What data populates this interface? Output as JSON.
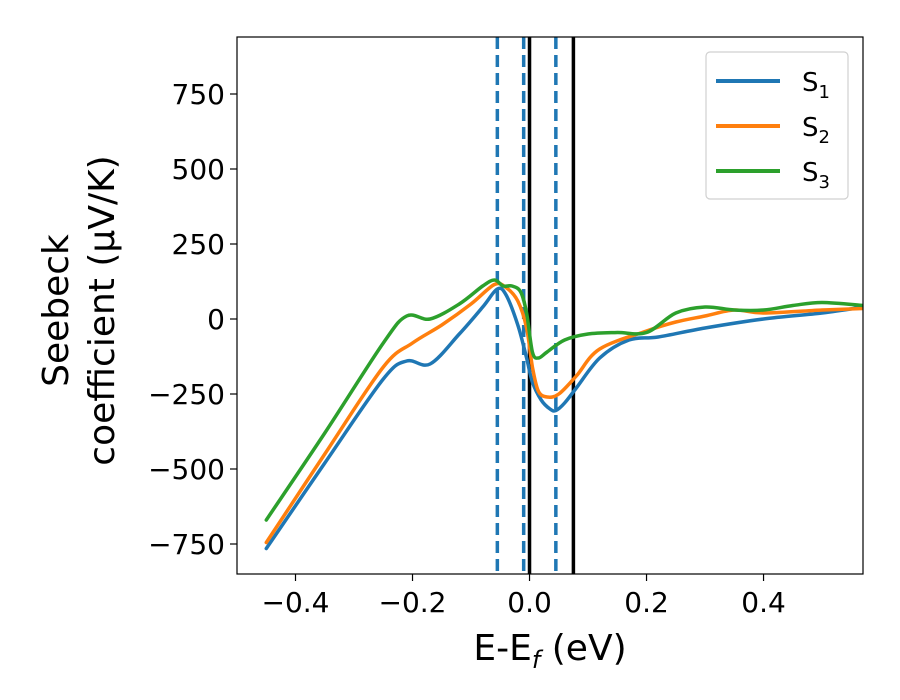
{
  "chart_data": {
    "type": "line",
    "xlabel": {
      "main": "E-E",
      "sub": "f",
      "suffix": " (eV)"
    },
    "ylabel": {
      "line1": "Seebeck",
      "line2": "coefficient  (μV/K)"
    },
    "xlim": [
      -0.5,
      0.57
    ],
    "ylim": [
      -850,
      940
    ],
    "xticks": [
      -0.4,
      -0.2,
      0.0,
      0.2,
      0.4
    ],
    "xtick_labels": [
      "−0.4",
      "−0.2",
      "0.0",
      "0.2",
      "0.4"
    ],
    "yticks": [
      -750,
      -500,
      -250,
      0,
      250,
      500,
      750
    ],
    "ytick_labels": [
      "−750",
      "−500",
      "−250",
      "0",
      "250",
      "500",
      "750"
    ],
    "grid": false,
    "legend_position": "top-right",
    "series": [
      {
        "name": "S",
        "sub": "1",
        "color": "#1f77b4",
        "x": [
          -0.45,
          -0.35,
          -0.25,
          -0.21,
          -0.17,
          -0.12,
          -0.08,
          -0.055,
          -0.04,
          -0.02,
          -0.005,
          0.005,
          0.02,
          0.035,
          0.045,
          0.06,
          0.08,
          0.12,
          0.17,
          0.22,
          0.3,
          0.4,
          0.5,
          0.57
        ],
        "y": [
          -765,
          -480,
          -200,
          -140,
          -150,
          -50,
          40,
          100,
          80,
          -20,
          -130,
          -210,
          -270,
          -300,
          -305,
          -280,
          -230,
          -130,
          -70,
          -60,
          -30,
          0,
          20,
          40
        ]
      },
      {
        "name": "S",
        "sub": "2",
        "color": "#ff7f0e",
        "x": [
          -0.45,
          -0.35,
          -0.25,
          -0.2,
          -0.15,
          -0.1,
          -0.06,
          -0.04,
          -0.02,
          -0.005,
          0.005,
          0.015,
          0.03,
          0.05,
          0.08,
          0.12,
          0.2,
          0.25,
          0.3,
          0.35,
          0.4,
          0.5,
          0.57
        ],
        "y": [
          -745,
          -450,
          -160,
          -80,
          -20,
          50,
          115,
          105,
          60,
          -30,
          -160,
          -240,
          -260,
          -250,
          -190,
          -100,
          -40,
          -10,
          10,
          30,
          20,
          30,
          35
        ]
      },
      {
        "name": "S",
        "sub": "3",
        "color": "#2ca02c",
        "x": [
          -0.45,
          -0.35,
          -0.25,
          -0.21,
          -0.17,
          -0.12,
          -0.08,
          -0.06,
          -0.045,
          -0.03,
          -0.015,
          -0.005,
          0.005,
          0.015,
          0.03,
          0.06,
          0.1,
          0.15,
          0.2,
          0.25,
          0.3,
          0.35,
          0.4,
          0.45,
          0.5,
          0.57
        ],
        "y": [
          -670,
          -380,
          -80,
          10,
          0,
          50,
          110,
          130,
          110,
          110,
          90,
          20,
          -110,
          -130,
          -110,
          -70,
          -50,
          -45,
          -45,
          20,
          40,
          30,
          30,
          45,
          55,
          45
        ]
      }
    ],
    "vlines": [
      {
        "x": -0.055,
        "color": "#1f77b4",
        "style": "dashed"
      },
      {
        "x": -0.01,
        "color": "#1f77b4",
        "style": "dashed"
      },
      {
        "x": 0.045,
        "color": "#1f77b4",
        "style": "dashed"
      },
      {
        "x": 0.0,
        "color": "#000000",
        "style": "solid"
      },
      {
        "x": 0.075,
        "color": "#000000",
        "style": "solid"
      }
    ]
  }
}
